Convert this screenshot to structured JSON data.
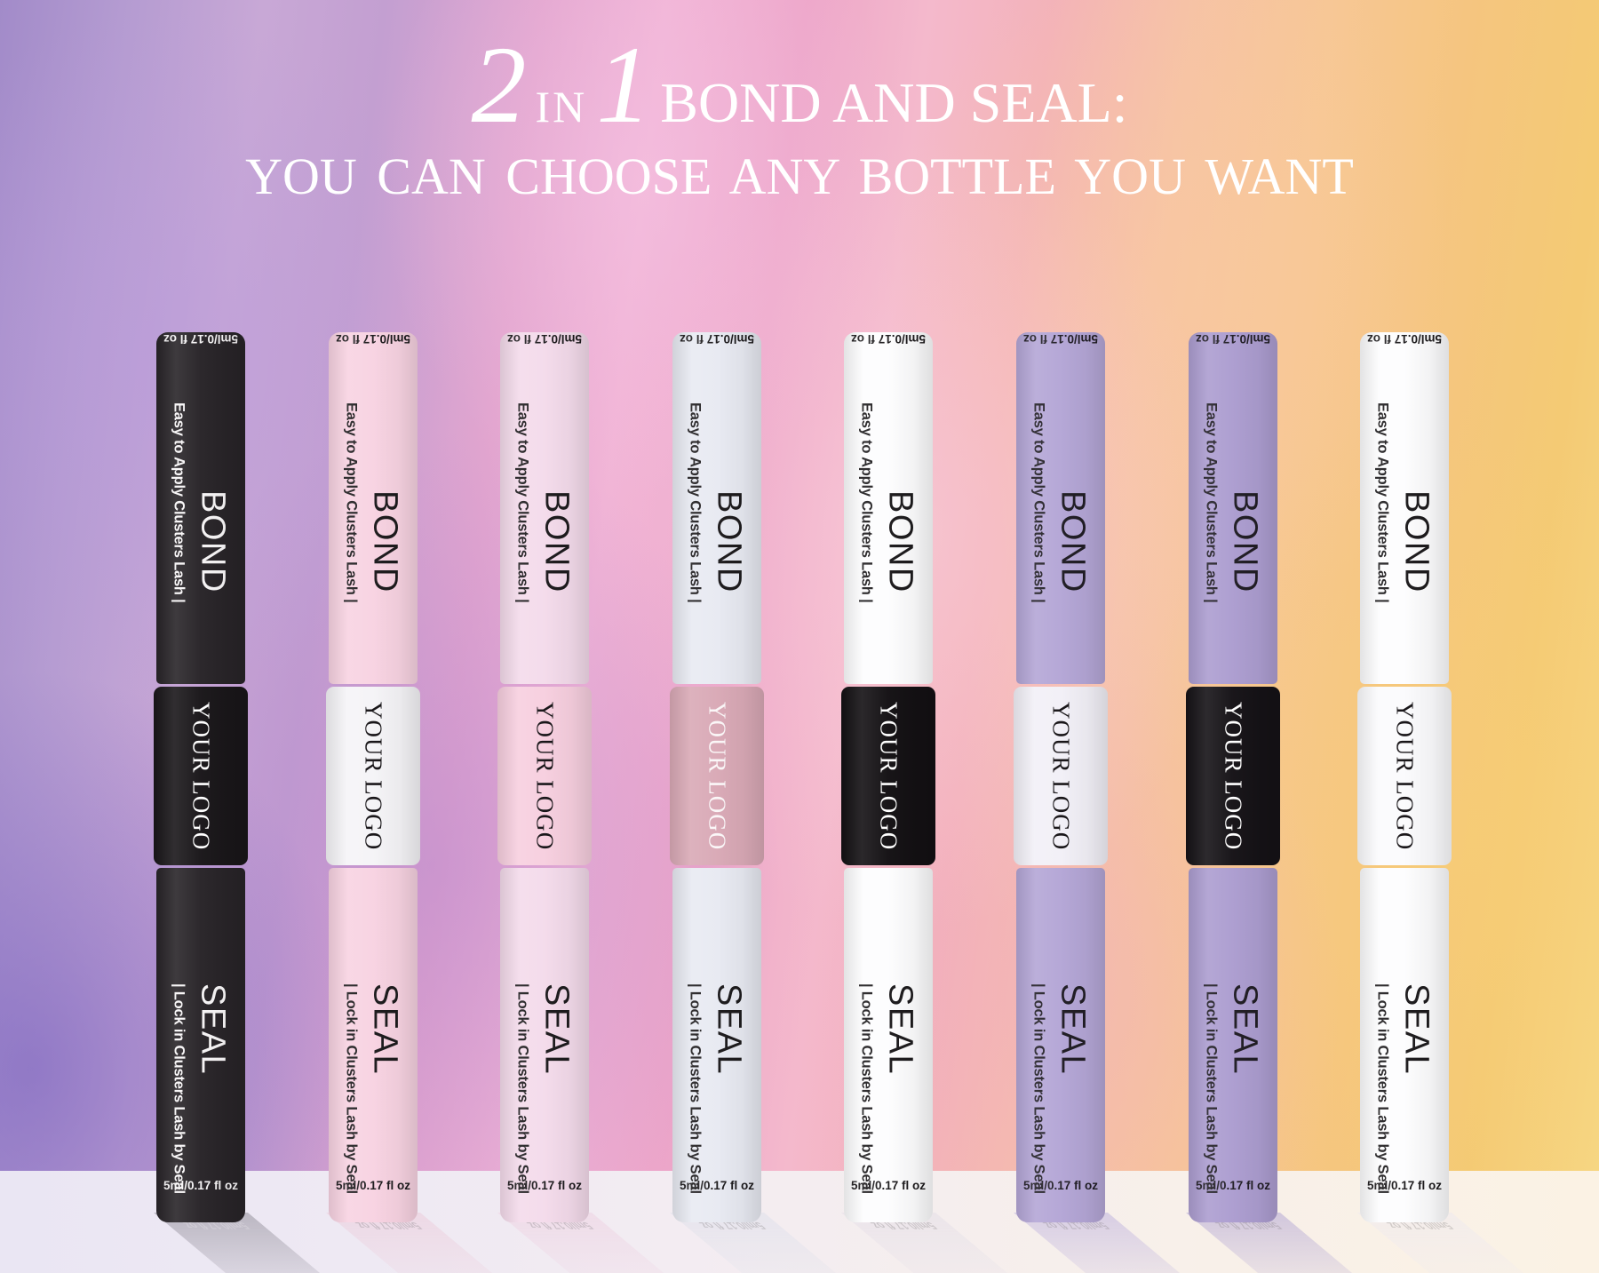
{
  "title": {
    "big_2": "2",
    "in_word": "IN",
    "big_1": "1",
    "line1_rest": "BOND AND SEAL:",
    "line2": "YOU CAN CHOOSE ANY BOTTLE YOU WANT",
    "text_color": "#ffffff"
  },
  "bottle_label": {
    "bond_title": "BOND",
    "bond_tagline": "Easy to Apply Clusters Lash |",
    "seal_title": "SEAL",
    "seal_tagline": "| Lock in Clusters Lash by Seal",
    "logo_text": "YOUR LOGO",
    "volume": "5ml/0.17 fl oz"
  },
  "bottles": [
    {
      "variant": "black-body-black-sleeve",
      "body": "#282428",
      "sleeve": "#191619",
      "body_text": "#f7f5f6",
      "sleeve_text": "#ffffff",
      "reflection": "#9d99a4"
    },
    {
      "variant": "pink-body-white-sleeve",
      "body": "#f8d3e2",
      "sleeve": "#f5f4f7",
      "body_text": "#1c1a1c",
      "sleeve_text": "#151215",
      "reflection": "#eccfdd"
    },
    {
      "variant": "lightpink-body-pink-sleeve",
      "body": "#f4dbeb",
      "sleeve": "#f7cfdf",
      "body_text": "#1c1a1c",
      "sleeve_text": "#151215",
      "reflection": "#eed4e3"
    },
    {
      "variant": "white-body-rose-sleeve",
      "body": "#e8eaf2",
      "sleeve": "#d9a9b6",
      "body_text": "#1c1a1c",
      "sleeve_text": "#fbf7f8",
      "reflection": "#e0e1eb"
    },
    {
      "variant": "white-body-black-sleeve",
      "body": "#fdfdfe",
      "sleeve": "#131013",
      "body_text": "#1c1a1c",
      "sleeve_text": "#ffffff",
      "reflection": "#e6e0e8"
    },
    {
      "variant": "purple-body-white-sleeve",
      "body": "#b4a6d6",
      "sleeve": "#f2f0f7",
      "body_text": "#201d24",
      "sleeve_text": "#151215",
      "reflection": "#c5badf"
    },
    {
      "variant": "purple-body-black-sleeve",
      "body": "#ac9dd0",
      "sleeve": "#151216",
      "body_text": "#201d24",
      "sleeve_text": "#ffffff",
      "reflection": "#baaed6"
    },
    {
      "variant": "white-body-white-sleeve",
      "body": "#fdfdfe",
      "sleeve": "#fbfbfd",
      "body_text": "#1c1a1c",
      "sleeve_text": "#151215",
      "reflection": "#efeaee"
    }
  ]
}
